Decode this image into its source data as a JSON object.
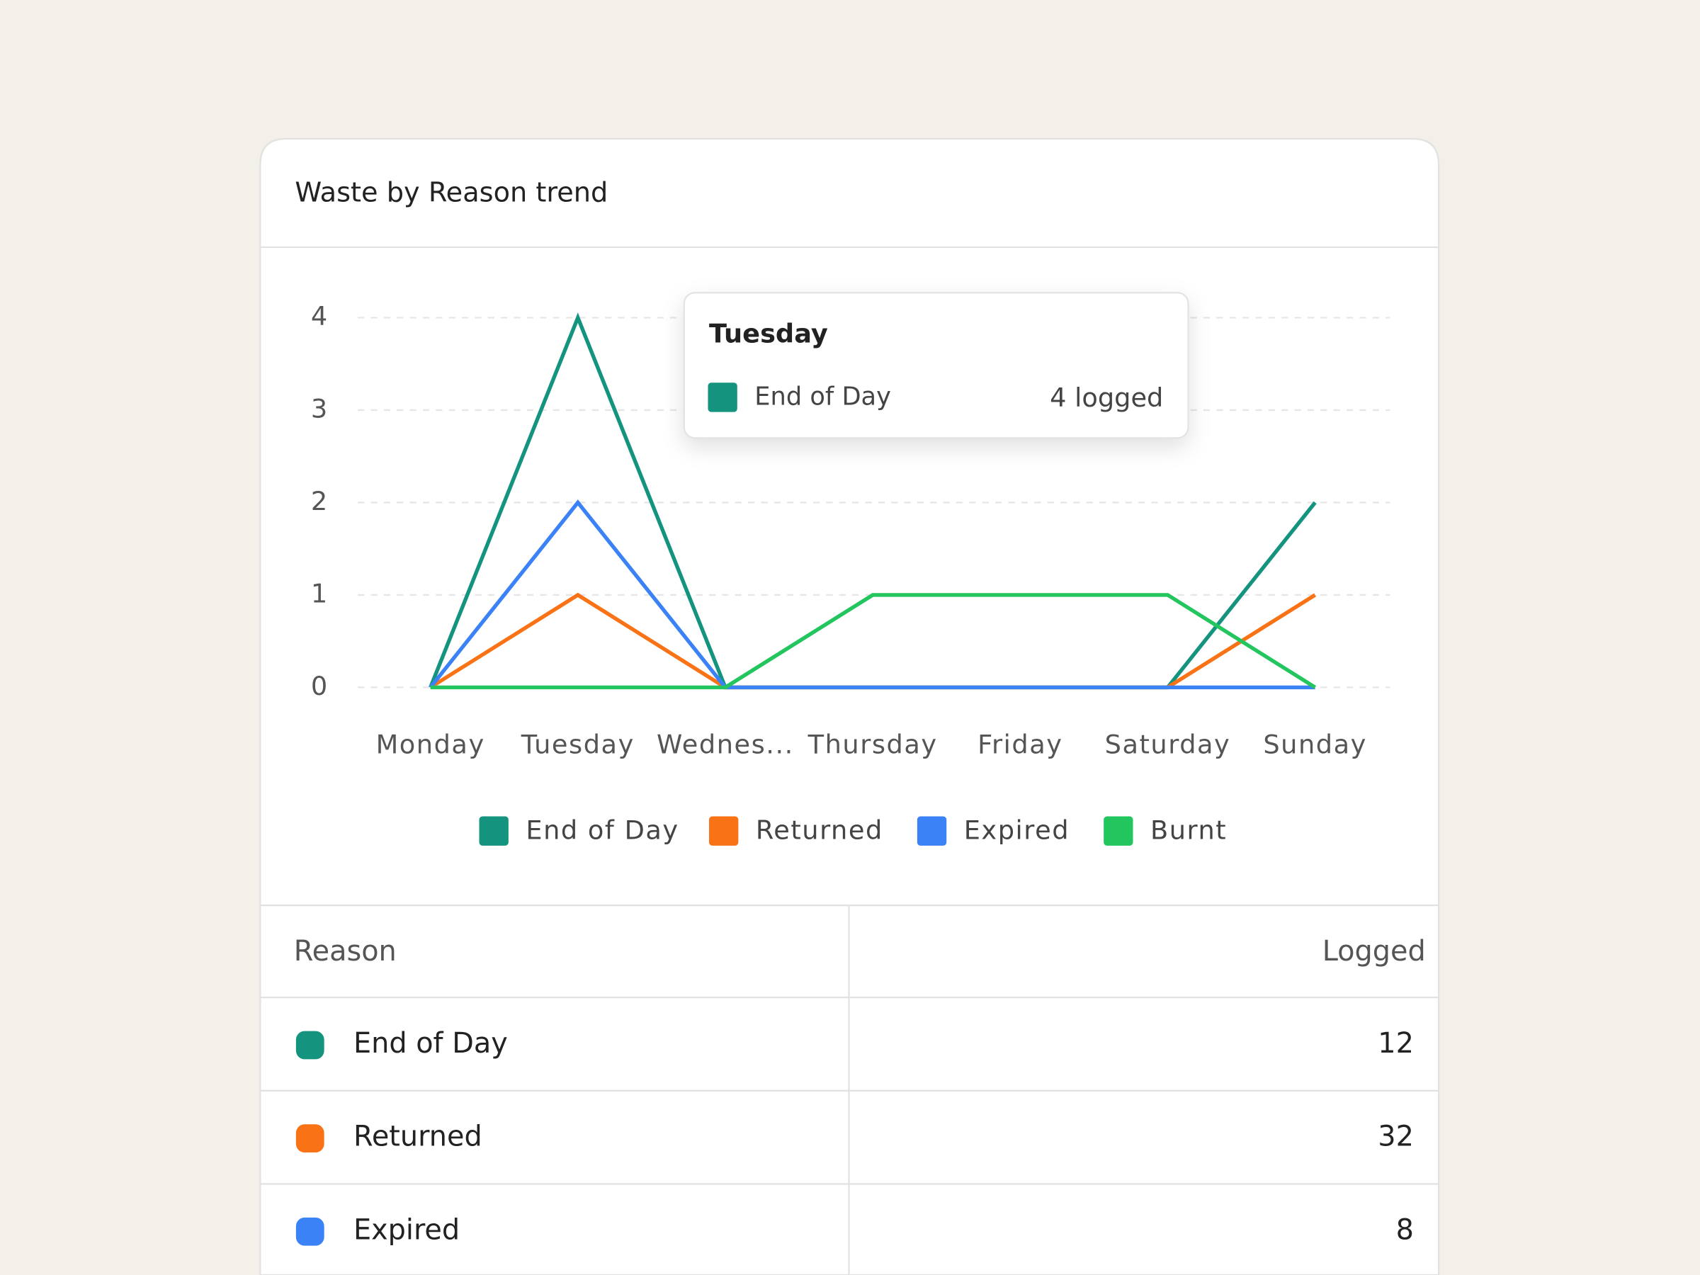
{
  "chart_data": {
    "type": "line",
    "title": "Waste by Reason trend",
    "categories": [
      "Monday",
      "Tuesday",
      "Wednes...",
      "Thursday",
      "Friday",
      "Saturday",
      "Sunday"
    ],
    "series": [
      {
        "name": "End of Day",
        "color": "#14937f",
        "values": [
          0,
          4,
          0,
          0,
          0,
          0,
          2
        ]
      },
      {
        "name": "Returned",
        "color": "#f97316",
        "values": [
          0,
          1,
          0,
          0,
          0,
          0,
          1
        ]
      },
      {
        "name": "Expired",
        "color": "#3b82f6",
        "values": [
          0,
          2,
          0,
          0,
          0,
          0,
          0
        ]
      },
      {
        "name": "Burnt",
        "color": "#22c55e",
        "values": [
          0,
          0,
          0,
          1,
          1,
          1,
          0
        ]
      }
    ],
    "ylim": [
      0,
      4
    ],
    "yticks": [
      0,
      1,
      2,
      3,
      4
    ],
    "grid": true,
    "legend": "bottom",
    "tooltip": {
      "category": "Tuesday",
      "name": "End of Day",
      "text": "4 logged"
    }
  },
  "table": {
    "header": [
      "Reason",
      "Logged"
    ],
    "rows": [
      [
        "End of Day",
        12
      ],
      [
        "Returned",
        32
      ],
      [
        "Expired",
        8
      ]
    ]
  }
}
